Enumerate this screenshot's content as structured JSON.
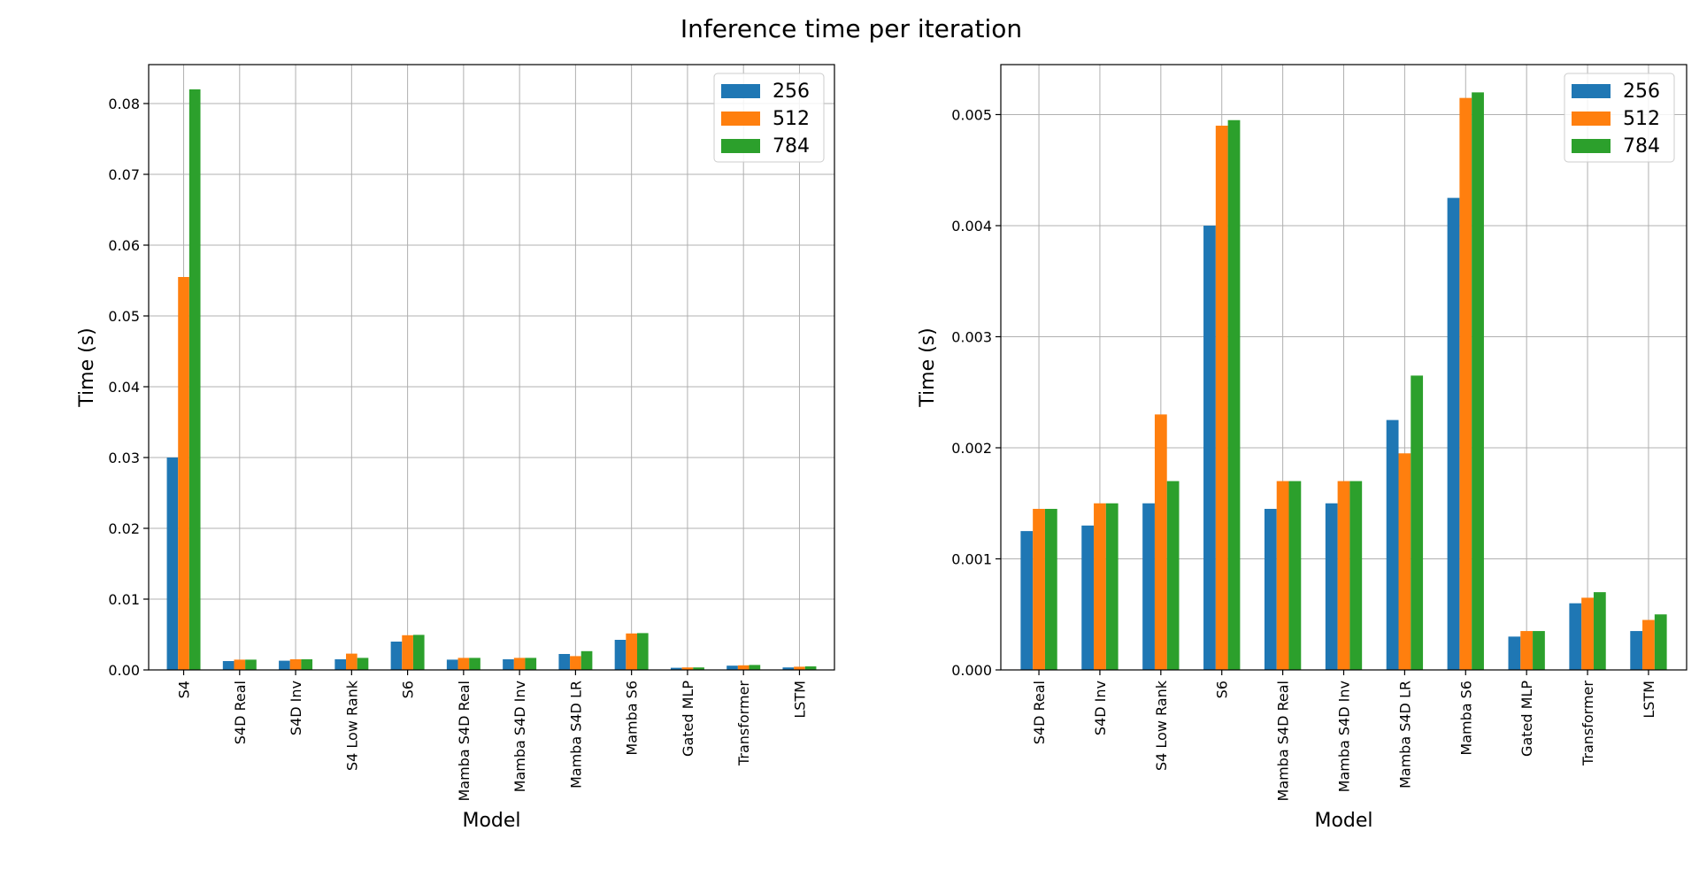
{
  "title": "Inference time per iteration",
  "chart_data": [
    {
      "type": "bar",
      "xlabel": "Model",
      "ylabel": "Time (s)",
      "ylim": [
        0,
        0.0855
      ],
      "yticks": [
        "0.00",
        "0.01",
        "0.02",
        "0.03",
        "0.04",
        "0.05",
        "0.06",
        "0.07",
        "0.08"
      ],
      "ytick_values": [
        0,
        0.01,
        0.02,
        0.03,
        0.04,
        0.05,
        0.06,
        0.07,
        0.08
      ],
      "grid": true,
      "legend": "top-right",
      "categories": [
        "S4",
        "S4D Real",
        "S4D Inv",
        "S4 Low Rank",
        "S6",
        "Mamba S4D Real",
        "Mamba S4D Inv",
        "Mamba S4D LR",
        "Mamba S6",
        "Gated MLP",
        "Transformer",
        "LSTM"
      ],
      "series": [
        {
          "name": "256",
          "color": "#1f77b4",
          "values": [
            0.03,
            0.00125,
            0.0013,
            0.0015,
            0.004,
            0.00145,
            0.0015,
            0.00225,
            0.00425,
            0.0003,
            0.0006,
            0.00035
          ]
        },
        {
          "name": "512",
          "color": "#ff7f0e",
          "values": [
            0.0555,
            0.00145,
            0.0015,
            0.0023,
            0.0049,
            0.0017,
            0.0017,
            0.00195,
            0.00515,
            0.00035,
            0.00065,
            0.00045
          ]
        },
        {
          "name": "784",
          "color": "#2ca02c",
          "values": [
            0.082,
            0.00145,
            0.0015,
            0.0017,
            0.00495,
            0.0017,
            0.0017,
            0.00265,
            0.0052,
            0.00035,
            0.0007,
            0.0005
          ]
        }
      ]
    },
    {
      "type": "bar",
      "xlabel": "Model",
      "ylabel": "Time (s)",
      "ylim": [
        0,
        0.00545
      ],
      "yticks": [
        "0.000",
        "0.001",
        "0.002",
        "0.003",
        "0.004",
        "0.005"
      ],
      "ytick_values": [
        0,
        0.001,
        0.002,
        0.003,
        0.004,
        0.005
      ],
      "grid": true,
      "legend": "top-right",
      "categories": [
        "S4D Real",
        "S4D Inv",
        "S4 Low Rank",
        "S6",
        "Mamba S4D Real",
        "Mamba S4D Inv",
        "Mamba S4D LR",
        "Mamba S6",
        "Gated MLP",
        "Transformer",
        "LSTM"
      ],
      "series": [
        {
          "name": "256",
          "color": "#1f77b4",
          "values": [
            0.00125,
            0.0013,
            0.0015,
            0.004,
            0.00145,
            0.0015,
            0.00225,
            0.00425,
            0.0003,
            0.0006,
            0.00035
          ]
        },
        {
          "name": "512",
          "color": "#ff7f0e",
          "values": [
            0.00145,
            0.0015,
            0.0023,
            0.0049,
            0.0017,
            0.0017,
            0.00195,
            0.00515,
            0.00035,
            0.00065,
            0.00045
          ]
        },
        {
          "name": "784",
          "color": "#2ca02c",
          "values": [
            0.00145,
            0.0015,
            0.0017,
            0.00495,
            0.0017,
            0.0017,
            0.00265,
            0.0052,
            0.00035,
            0.0007,
            0.0005
          ]
        }
      ]
    }
  ]
}
